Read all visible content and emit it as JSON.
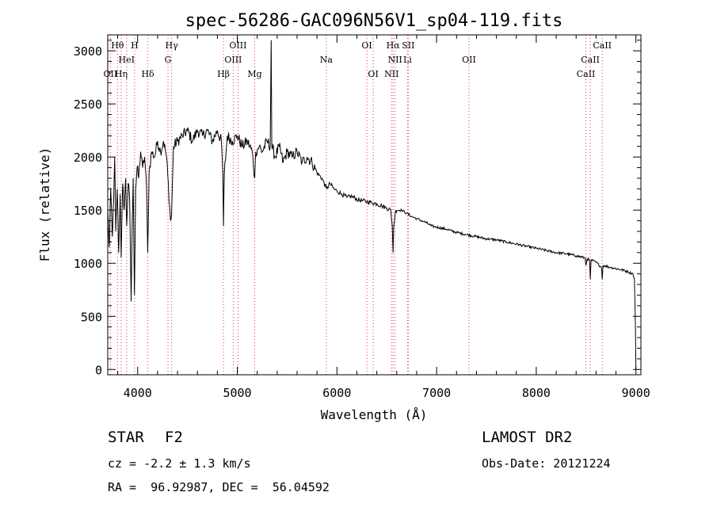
{
  "chart_data": {
    "type": "line",
    "title": "spec-56286-GAC096N56V1_sp04-119.fits",
    "xlabel": "Wavelength (Å)",
    "ylabel": "Flux (relative)",
    "xlim": [
      3700,
      9050
    ],
    "ylim": [
      -50,
      3150
    ],
    "x_ticks": [
      4000,
      5000,
      6000,
      7000,
      8000,
      9000
    ],
    "y_ticks": [
      0,
      500,
      1000,
      1500,
      2000,
      2500,
      3000
    ],
    "grid": false,
    "series": [
      {
        "name": "flux",
        "points": [
          [
            3700,
            1500
          ],
          [
            3715,
            1150
          ],
          [
            3730,
            1700
          ],
          [
            3745,
            1250
          ],
          [
            3760,
            1600
          ],
          [
            3770,
            2000
          ],
          [
            3780,
            1300
          ],
          [
            3795,
            1700
          ],
          [
            3810,
            1100
          ],
          [
            3825,
            1650
          ],
          [
            3835,
            1050
          ],
          [
            3850,
            1750
          ],
          [
            3865,
            1500
          ],
          [
            3880,
            1800
          ],
          [
            3890,
            1350
          ],
          [
            3905,
            1750
          ],
          [
            3920,
            1600
          ],
          [
            3935,
            640
          ],
          [
            3945,
            1350
          ],
          [
            3955,
            1800
          ],
          [
            3968,
            700
          ],
          [
            3980,
            1700
          ],
          [
            3995,
            1900
          ],
          [
            4010,
            1800
          ],
          [
            4030,
            2050
          ],
          [
            4050,
            1900
          ],
          [
            4070,
            2000
          ],
          [
            4090,
            1700
          ],
          [
            4101,
            1100
          ],
          [
            4115,
            1850
          ],
          [
            4140,
            2050
          ],
          [
            4170,
            2000
          ],
          [
            4200,
            2150
          ],
          [
            4230,
            2050
          ],
          [
            4260,
            2150
          ],
          [
            4290,
            2000
          ],
          [
            4320,
            1550
          ],
          [
            4330,
            1400
          ],
          [
            4340,
            1450
          ],
          [
            4360,
            2100
          ],
          [
            4400,
            2150
          ],
          [
            4450,
            2200
          ],
          [
            4500,
            2250
          ],
          [
            4550,
            2150
          ],
          [
            4600,
            2250
          ],
          [
            4650,
            2200
          ],
          [
            4700,
            2250
          ],
          [
            4750,
            2150
          ],
          [
            4800,
            2250
          ],
          [
            4840,
            2150
          ],
          [
            4855,
            1850
          ],
          [
            4861,
            1350
          ],
          [
            4870,
            1850
          ],
          [
            4900,
            2200
          ],
          [
            4950,
            2150
          ],
          [
            5000,
            2200
          ],
          [
            5050,
            2100
          ],
          [
            5100,
            2150
          ],
          [
            5150,
            2050
          ],
          [
            5175,
            1800
          ],
          [
            5185,
            2050
          ],
          [
            5220,
            2100
          ],
          [
            5250,
            2050
          ],
          [
            5300,
            2150
          ],
          [
            5330,
            2100
          ],
          [
            5340,
            3100
          ],
          [
            5346,
            2100
          ],
          [
            5380,
            2000
          ],
          [
            5420,
            2100
          ],
          [
            5460,
            1950
          ],
          [
            5500,
            2050
          ],
          [
            5550,
            2000
          ],
          [
            5600,
            2050
          ],
          [
            5650,
            1950
          ],
          [
            5700,
            2000
          ],
          [
            5750,
            1950
          ],
          [
            5800,
            1850
          ],
          [
            5850,
            1800
          ],
          [
            5895,
            1700
          ],
          [
            5930,
            1750
          ],
          [
            5970,
            1700
          ],
          [
            6000,
            1680
          ],
          [
            6050,
            1650
          ],
          [
            6100,
            1620
          ],
          [
            6150,
            1630
          ],
          [
            6200,
            1600
          ],
          [
            6250,
            1590
          ],
          [
            6300,
            1580
          ],
          [
            6350,
            1570
          ],
          [
            6400,
            1560
          ],
          [
            6450,
            1540
          ],
          [
            6500,
            1520
          ],
          [
            6540,
            1500
          ],
          [
            6555,
            1350
          ],
          [
            6563,
            1100
          ],
          [
            6570,
            1350
          ],
          [
            6590,
            1500
          ],
          [
            6650,
            1500
          ],
          [
            6700,
            1470
          ],
          [
            6750,
            1440
          ],
          [
            6800,
            1420
          ],
          [
            6850,
            1400
          ],
          [
            6900,
            1380
          ],
          [
            6950,
            1350
          ],
          [
            7000,
            1340
          ],
          [
            7100,
            1320
          ],
          [
            7200,
            1290
          ],
          [
            7300,
            1270
          ],
          [
            7400,
            1250
          ],
          [
            7500,
            1230
          ],
          [
            7600,
            1220
          ],
          [
            7700,
            1200
          ],
          [
            7800,
            1180
          ],
          [
            7900,
            1160
          ],
          [
            8000,
            1140
          ],
          [
            8100,
            1120
          ],
          [
            8200,
            1100
          ],
          [
            8300,
            1090
          ],
          [
            8400,
            1070
          ],
          [
            8490,
            1050
          ],
          [
            8498,
            980
          ],
          [
            8510,
            1040
          ],
          [
            8535,
            1030
          ],
          [
            8542,
            850
          ],
          [
            8550,
            1030
          ],
          [
            8600,
            1010
          ],
          [
            8655,
            960
          ],
          [
            8662,
            850
          ],
          [
            8670,
            980
          ],
          [
            8750,
            960
          ],
          [
            8850,
            940
          ],
          [
            8920,
            920
          ],
          [
            8970,
            900
          ],
          [
            8985,
            850
          ],
          [
            8995,
            400
          ],
          [
            9000,
            0
          ]
        ]
      }
    ],
    "spectral_lines": [
      {
        "label": "Hθ",
        "wavelength": 3798,
        "row": 0
      },
      {
        "label": "H",
        "wavelength": 3970,
        "row": 0
      },
      {
        "label": "HeI",
        "wavelength": 3889,
        "row": 1
      },
      {
        "label": "OII",
        "wavelength": 3727,
        "row": 2
      },
      {
        "label": "Hη",
        "wavelength": 3835,
        "row": 2
      },
      {
        "label": "Hδ",
        "wavelength": 4102,
        "row": 2
      },
      {
        "label": "Hγ",
        "wavelength": 4341,
        "row": 0
      },
      {
        "label": "G",
        "wavelength": 4304,
        "row": 1
      },
      {
        "label": "OIII",
        "wavelength": 5007,
        "row": 0
      },
      {
        "label": "OIII",
        "wavelength": 4959,
        "row": 1
      },
      {
        "label": "Hβ",
        "wavelength": 4861,
        "row": 2
      },
      {
        "label": "Mg",
        "wavelength": 5175,
        "row": 2
      },
      {
        "label": "Na",
        "wavelength": 5893,
        "row": 1
      },
      {
        "label": "OI",
        "wavelength": 6300,
        "row": 0
      },
      {
        "label": "OI",
        "wavelength": 6364,
        "row": 2
      },
      {
        "label": "Hα",
        "wavelength": 6563,
        "row": 0
      },
      {
        "label": "SII",
        "wavelength": 6716,
        "row": 0
      },
      {
        "label": "NII",
        "wavelength": 6583,
        "row": 1
      },
      {
        "label": "NII",
        "wavelength": 6548,
        "row": 2
      },
      {
        "label": "Li",
        "wavelength": 6708,
        "row": 1
      },
      {
        "label": "OII",
        "wavelength": 7325,
        "row": 1
      },
      {
        "label": "CaII",
        "wavelength": 8662,
        "row": 0
      },
      {
        "label": "CaII",
        "wavelength": 8542,
        "row": 1
      },
      {
        "label": "CaII",
        "wavelength": 8498,
        "row": 2
      }
    ]
  },
  "info": {
    "class_label": "STAR",
    "subclass": "F2",
    "survey": "LAMOST DR2",
    "cz_text": "cz = -2.2 ± 1.3 km/s",
    "obs_date_text": "Obs-Date: 20121224",
    "coords_text": "RA =  96.92987, DEC =  56.04592"
  },
  "colors": {
    "axis": "#000000",
    "spectrum": "#000000",
    "line_marker": "#e8323c"
  }
}
